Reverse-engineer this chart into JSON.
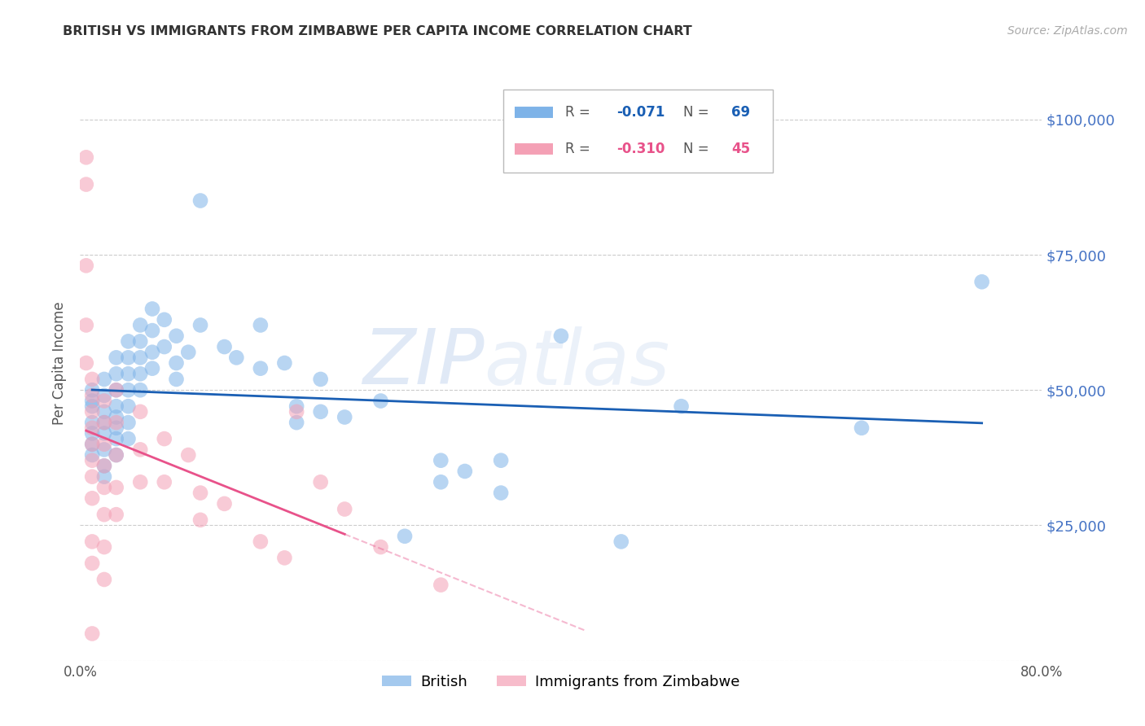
{
  "title": "BRITISH VS IMMIGRANTS FROM ZIMBABWE PER CAPITA INCOME CORRELATION CHART",
  "source": "Source: ZipAtlas.com",
  "ylabel": "Per Capita Income",
  "xlim": [
    0.0,
    0.8
  ],
  "ylim": [
    0,
    110000
  ],
  "yticks": [
    0,
    25000,
    50000,
    75000,
    100000
  ],
  "xticks": [
    0.0,
    0.1,
    0.2,
    0.3,
    0.4,
    0.5,
    0.6,
    0.7,
    0.8
  ],
  "background_color": "#ffffff",
  "grid_color": "#cccccc",
  "british_color": "#7eb3e8",
  "zimbabwe_color": "#f4a0b5",
  "british_line_color": "#1a5fb4",
  "zimbabwe_line_color": "#e8528a",
  "british_R": "-0.071",
  "british_N": "69",
  "zimbabwe_R": "-0.310",
  "zimbabwe_N": "45",
  "watermark_zip": "ZIP",
  "watermark_atlas": "atlas",
  "british_points": [
    [
      0.01,
      48000
    ],
    [
      0.01,
      50000
    ],
    [
      0.01,
      47000
    ],
    [
      0.01,
      44000
    ],
    [
      0.01,
      42000
    ],
    [
      0.01,
      40000
    ],
    [
      0.01,
      38000
    ],
    [
      0.02,
      52000
    ],
    [
      0.02,
      49000
    ],
    [
      0.02,
      46000
    ],
    [
      0.02,
      44000
    ],
    [
      0.02,
      42000
    ],
    [
      0.02,
      39000
    ],
    [
      0.02,
      36000
    ],
    [
      0.02,
      34000
    ],
    [
      0.03,
      56000
    ],
    [
      0.03,
      53000
    ],
    [
      0.03,
      50000
    ],
    [
      0.03,
      47000
    ],
    [
      0.03,
      45000
    ],
    [
      0.03,
      43000
    ],
    [
      0.03,
      41000
    ],
    [
      0.03,
      38000
    ],
    [
      0.04,
      59000
    ],
    [
      0.04,
      56000
    ],
    [
      0.04,
      53000
    ],
    [
      0.04,
      50000
    ],
    [
      0.04,
      47000
    ],
    [
      0.04,
      44000
    ],
    [
      0.04,
      41000
    ],
    [
      0.05,
      62000
    ],
    [
      0.05,
      59000
    ],
    [
      0.05,
      56000
    ],
    [
      0.05,
      53000
    ],
    [
      0.05,
      50000
    ],
    [
      0.06,
      65000
    ],
    [
      0.06,
      61000
    ],
    [
      0.06,
      57000
    ],
    [
      0.06,
      54000
    ],
    [
      0.07,
      63000
    ],
    [
      0.07,
      58000
    ],
    [
      0.08,
      60000
    ],
    [
      0.08,
      55000
    ],
    [
      0.08,
      52000
    ],
    [
      0.09,
      57000
    ],
    [
      0.1,
      85000
    ],
    [
      0.1,
      62000
    ],
    [
      0.12,
      58000
    ],
    [
      0.13,
      56000
    ],
    [
      0.15,
      62000
    ],
    [
      0.15,
      54000
    ],
    [
      0.17,
      55000
    ],
    [
      0.18,
      47000
    ],
    [
      0.18,
      44000
    ],
    [
      0.2,
      52000
    ],
    [
      0.2,
      46000
    ],
    [
      0.22,
      45000
    ],
    [
      0.25,
      48000
    ],
    [
      0.27,
      23000
    ],
    [
      0.3,
      37000
    ],
    [
      0.3,
      33000
    ],
    [
      0.32,
      35000
    ],
    [
      0.35,
      37000
    ],
    [
      0.35,
      31000
    ],
    [
      0.4,
      60000
    ],
    [
      0.45,
      22000
    ],
    [
      0.5,
      47000
    ],
    [
      0.65,
      43000
    ],
    [
      0.75,
      70000
    ]
  ],
  "zimbabwe_points": [
    [
      0.005,
      93000
    ],
    [
      0.005,
      88000
    ],
    [
      0.005,
      73000
    ],
    [
      0.005,
      62000
    ],
    [
      0.005,
      55000
    ],
    [
      0.01,
      52000
    ],
    [
      0.01,
      49000
    ],
    [
      0.01,
      46000
    ],
    [
      0.01,
      43000
    ],
    [
      0.01,
      40000
    ],
    [
      0.01,
      37000
    ],
    [
      0.01,
      34000
    ],
    [
      0.01,
      30000
    ],
    [
      0.01,
      22000
    ],
    [
      0.01,
      18000
    ],
    [
      0.01,
      5000
    ],
    [
      0.02,
      48000
    ],
    [
      0.02,
      44000
    ],
    [
      0.02,
      40000
    ],
    [
      0.02,
      36000
    ],
    [
      0.02,
      32000
    ],
    [
      0.02,
      27000
    ],
    [
      0.02,
      21000
    ],
    [
      0.02,
      15000
    ],
    [
      0.03,
      50000
    ],
    [
      0.03,
      44000
    ],
    [
      0.03,
      38000
    ],
    [
      0.03,
      32000
    ],
    [
      0.03,
      27000
    ],
    [
      0.05,
      46000
    ],
    [
      0.05,
      39000
    ],
    [
      0.05,
      33000
    ],
    [
      0.07,
      41000
    ],
    [
      0.07,
      33000
    ],
    [
      0.09,
      38000
    ],
    [
      0.1,
      31000
    ],
    [
      0.1,
      26000
    ],
    [
      0.12,
      29000
    ],
    [
      0.15,
      22000
    ],
    [
      0.17,
      19000
    ],
    [
      0.18,
      46000
    ],
    [
      0.2,
      33000
    ],
    [
      0.22,
      28000
    ],
    [
      0.25,
      21000
    ],
    [
      0.3,
      14000
    ]
  ]
}
